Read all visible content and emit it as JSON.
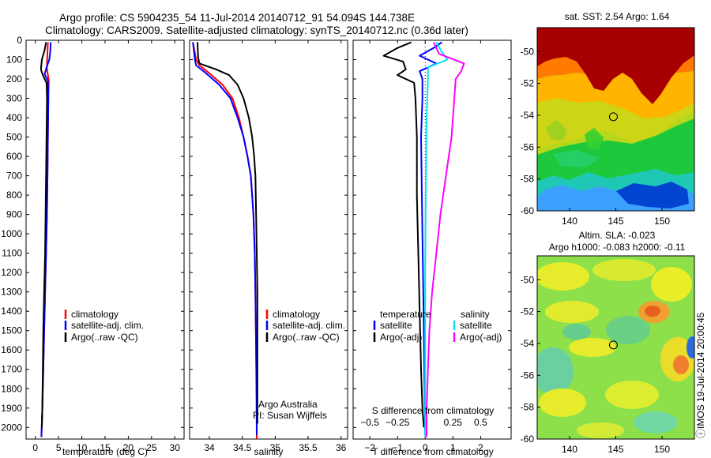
{
  "figure": {
    "title_line1": "Argo profile: CS 5904235_54 11-Jul-2014 20140712_91 54.094S 144.738E",
    "title_line2": "Climatology: CARS2009. Satellite-adjusted climatology: synTS_20140712.nc (0.36d later)",
    "side_stamp": "ⓘIMOS 19-Jul-2014 20:00:45",
    "credit_line1": "Argo Australia",
    "credit_line2": "PI: Susan Wijffels"
  },
  "colors": {
    "climatology": "#ff0000",
    "satellite": "#0000ff",
    "argo": "#000000",
    "s_satellite": "#00e5ee",
    "s_argo": "#ff00ff"
  },
  "chart_data": [
    {
      "type": "line",
      "id": "temperature",
      "xlabel": "temperature (deg C)",
      "xlim": [
        -2,
        32
      ],
      "ylim": [
        2060,
        0
      ],
      "xticks": [
        0,
        5,
        10,
        15,
        20,
        25,
        30
      ],
      "yticks": [
        0,
        100,
        200,
        300,
        400,
        500,
        600,
        700,
        800,
        900,
        1000,
        1100,
        1200,
        1300,
        1400,
        1500,
        1600,
        1700,
        1800,
        1900,
        2000
      ],
      "legend": [
        "climatology",
        "satellite-adj. clim.",
        "Argo(..raw -QC)"
      ],
      "series": [
        {
          "name": "climatology",
          "color_key": "climatology",
          "points": [
            [
              2.7,
              10
            ],
            [
              2.6,
              60
            ],
            [
              2.5,
              120
            ],
            [
              2.5,
              150
            ],
            [
              2.9,
              210
            ],
            [
              2.8,
              300
            ],
            [
              2.7,
              500
            ],
            [
              2.6,
              700
            ],
            [
              2.5,
              880
            ],
            [
              2.3,
              1100
            ],
            [
              2.1,
              1300
            ],
            [
              1.9,
              1500
            ],
            [
              1.7,
              1700
            ],
            [
              1.5,
              1900
            ],
            [
              1.3,
              2050
            ]
          ]
        },
        {
          "name": "satellite-adj. clim.",
          "color_key": "satellite",
          "points": [
            [
              3.3,
              10
            ],
            [
              3.2,
              60
            ],
            [
              3.0,
              100
            ],
            [
              2.4,
              140
            ],
            [
              2.0,
              175
            ],
            [
              2.7,
              210
            ],
            [
              2.8,
              300
            ],
            [
              2.7,
              500
            ],
            [
              2.6,
              700
            ],
            [
              2.5,
              880
            ],
            [
              2.3,
              1100
            ],
            [
              2.1,
              1300
            ],
            [
              1.9,
              1500
            ],
            [
              1.7,
              1700
            ],
            [
              1.5,
              1900
            ],
            [
              1.3,
              2050
            ]
          ]
        },
        {
          "name": "Argo(..raw -QC)",
          "color_key": "argo",
          "points": [
            [
              2.3,
              10
            ],
            [
              2.0,
              50
            ],
            [
              1.4,
              100
            ],
            [
              1.2,
              150
            ],
            [
              1.6,
              180
            ],
            [
              2.4,
              220
            ],
            [
              2.5,
              300
            ],
            [
              2.4,
              500
            ],
            [
              2.3,
              700
            ],
            [
              2.2,
              900
            ],
            [
              2.1,
              1100
            ],
            [
              1.9,
              1300
            ],
            [
              1.7,
              1500
            ],
            [
              1.6,
              1700
            ],
            [
              1.5,
              1900
            ],
            [
              1.4,
              2000
            ]
          ]
        }
      ]
    },
    {
      "type": "line",
      "id": "salinity",
      "xlabel": "salinity",
      "xlim": [
        33.7,
        36.1
      ],
      "ylim": [
        2060,
        0
      ],
      "xticks": [
        34,
        34.5,
        35,
        35.5,
        36
      ],
      "xtick_labels": [
        "34",
        "34.5",
        "35",
        "35.5",
        "36"
      ],
      "legend": [
        "climatology",
        "satellite-adj. clim.",
        "Argo(..raw -QC)"
      ],
      "series": [
        {
          "name": "climatology",
          "color_key": "climatology",
          "points": [
            [
              33.75,
              10
            ],
            [
              33.8,
              100
            ],
            [
              33.85,
              130
            ],
            [
              34.0,
              170
            ],
            [
              34.2,
              230
            ],
            [
              34.35,
              300
            ],
            [
              34.45,
              400
            ],
            [
              34.52,
              500
            ],
            [
              34.58,
              600
            ],
            [
              34.63,
              700
            ],
            [
              34.67,
              900
            ],
            [
              34.69,
              1100
            ],
            [
              34.7,
              1300
            ],
            [
              34.71,
              1600
            ],
            [
              34.72,
              2060
            ]
          ]
        },
        {
          "name": "satellite-adj. clim.",
          "color_key": "satellite",
          "points": [
            [
              33.75,
              10
            ],
            [
              33.78,
              100
            ],
            [
              33.8,
              130
            ],
            [
              33.95,
              170
            ],
            [
              34.15,
              230
            ],
            [
              34.32,
              300
            ],
            [
              34.43,
              400
            ],
            [
              34.52,
              500
            ],
            [
              34.58,
              600
            ],
            [
              34.63,
              700
            ],
            [
              34.67,
              900
            ],
            [
              34.69,
              1100
            ],
            [
              34.7,
              1300
            ],
            [
              34.71,
              1600
            ],
            [
              34.72,
              1850
            ],
            [
              34.72,
              2040
            ]
          ]
        },
        {
          "name": "Argo(..raw -QC)",
          "color_key": "argo",
          "points": [
            [
              33.82,
              10
            ],
            [
              33.83,
              90
            ],
            [
              33.85,
              120
            ],
            [
              34.1,
              150
            ],
            [
              34.3,
              180
            ],
            [
              34.43,
              230
            ],
            [
              34.52,
              300
            ],
            [
              34.6,
              400
            ],
            [
              34.65,
              500
            ],
            [
              34.68,
              600
            ],
            [
              34.7,
              700
            ],
            [
              34.71,
              900
            ],
            [
              34.72,
              1100
            ],
            [
              34.73,
              1300
            ],
            [
              34.73,
              1600
            ],
            [
              34.73,
              1900
            ],
            [
              34.73,
              1980
            ]
          ]
        }
      ]
    },
    {
      "type": "line",
      "id": "difference",
      "xlabel": "T difference from climatology",
      "xlabel_top": "S difference from climatology",
      "xlim": [
        -2.6,
        3.1
      ],
      "ylim": [
        2060,
        0
      ],
      "xticks": [
        -2,
        -1,
        0,
        1,
        2
      ],
      "xtick_labels": [
        "−2",
        "−1",
        "0",
        "1",
        "2"
      ],
      "s_ticks": [
        -0.5,
        -0.25,
        0,
        0.25,
        0.5
      ],
      "s_tick_labels": [
        "−0.5",
        "−0.25",
        "0",
        "0.25",
        "0.5"
      ],
      "s_to_x_scale": 4,
      "legend_headers": [
        "temperature",
        "salinity"
      ],
      "legend": [
        "satellite",
        "Argo(-adj)",
        "satellite",
        "Argo(-adj)"
      ],
      "series": [
        {
          "name": "satellite",
          "color_key": "satellite",
          "points": [
            [
              0.6,
              10
            ],
            [
              0.3,
              40
            ],
            [
              -0.2,
              80
            ],
            [
              0.4,
              120
            ],
            [
              -0.2,
              160
            ],
            [
              -0.1,
              200
            ],
            [
              -0.1,
              300
            ],
            [
              -0.15,
              500
            ],
            [
              -0.1,
              1000
            ],
            [
              -0.05,
              1500
            ],
            [
              0,
              2040
            ]
          ]
        },
        {
          "name": "Argo(-adj)",
          "color_key": "argo",
          "points": [
            [
              -0.5,
              10
            ],
            [
              -1.0,
              40
            ],
            [
              -1.5,
              80
            ],
            [
              -0.8,
              110
            ],
            [
              -0.7,
              150
            ],
            [
              -1.0,
              180
            ],
            [
              -0.4,
              220
            ],
            [
              -0.35,
              300
            ],
            [
              -0.3,
              500
            ],
            [
              -0.3,
              800
            ],
            [
              -0.25,
              1100
            ],
            [
              -0.2,
              1400
            ],
            [
              -0.15,
              1700
            ],
            [
              -0.1,
              1900
            ],
            [
              -0.05,
              2000
            ]
          ]
        },
        {
          "name": "satellite",
          "color_key": "s_satellite",
          "points": [
            [
              0.4,
              10
            ],
            [
              0.6,
              60
            ],
            [
              0.8,
              100
            ],
            [
              0.1,
              140
            ],
            [
              0.1,
              200
            ],
            [
              0.05,
              400
            ],
            [
              0.02,
              800
            ],
            [
              0,
              1200
            ],
            [
              0,
              2050
            ]
          ]
        },
        {
          "name": "Argo(-adj)",
          "color_key": "s_argo",
          "points": [
            [
              0.3,
              10
            ],
            [
              0.5,
              70
            ],
            [
              1.4,
              120
            ],
            [
              1.3,
              160
            ],
            [
              1.1,
              200
            ],
            [
              1.05,
              300
            ],
            [
              0.95,
              500
            ],
            [
              0.75,
              700
            ],
            [
              0.55,
              900
            ],
            [
              0.4,
              1100
            ],
            [
              0.25,
              1300
            ],
            [
              0.15,
              1500
            ],
            [
              0.1,
              1700
            ],
            [
              0.05,
              1900
            ],
            [
              0.05,
              2050
            ]
          ]
        }
      ]
    },
    {
      "type": "heatmap",
      "id": "sst-map",
      "title": "sat. SST: 2.54  Argo: 1.64",
      "xlim": [
        136.5,
        153.5
      ],
      "ylim": [
        -60,
        -48.5
      ],
      "xticks": [
        140,
        145,
        150
      ],
      "yticks": [
        -50,
        -52,
        -54,
        -56,
        -58,
        -60
      ],
      "marker": [
        144.738,
        -54.094
      ]
    },
    {
      "type": "heatmap",
      "id": "sla-map",
      "title_line1": "Altim. SLA: -0.023",
      "title_line2": "Argo h1000: -0.083 h2000: -0.11",
      "xlim": [
        136.5,
        153.5
      ],
      "ylim": [
        -60,
        -48.5
      ],
      "xticks": [
        140,
        145,
        150
      ],
      "yticks": [
        -50,
        -52,
        -54,
        -56,
        -58,
        -60
      ],
      "marker": [
        144.738,
        -54.094
      ]
    }
  ]
}
